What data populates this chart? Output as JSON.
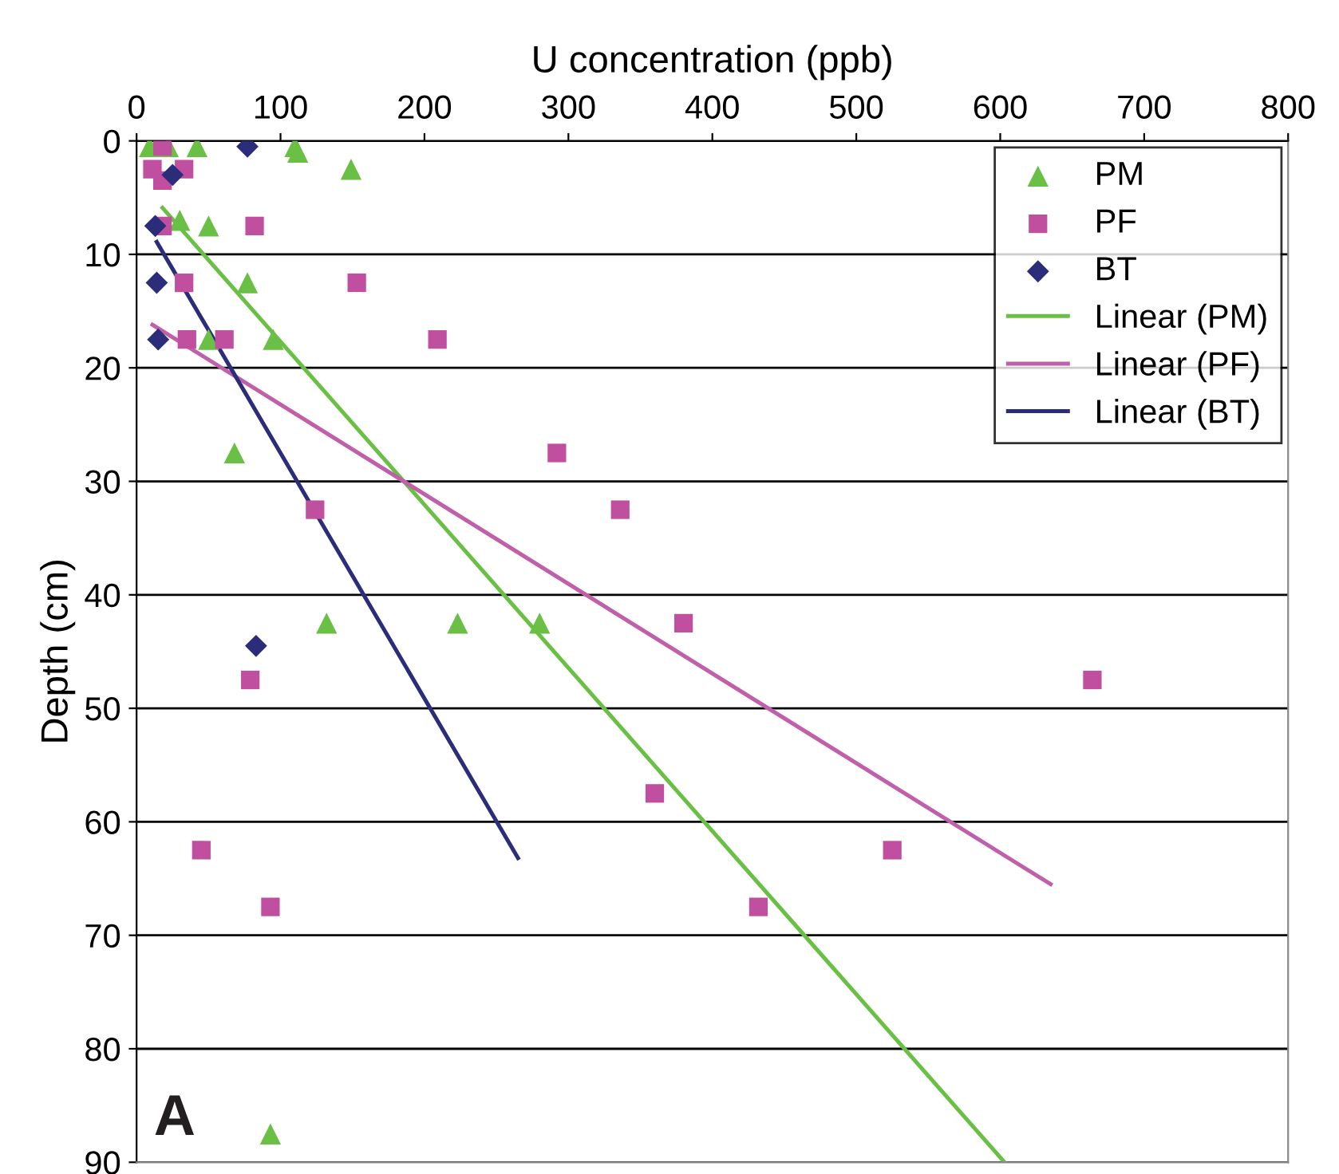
{
  "chart_data": {
    "type": "scatter",
    "xlabel": "U concentration (ppb)",
    "ylabel": "Depth (cm)",
    "xlim": [
      0,
      800
    ],
    "xticks": [
      0,
      100,
      200,
      300,
      400,
      500,
      600,
      700,
      800
    ],
    "ylim": [
      90,
      0
    ],
    "yticks": [
      0,
      10,
      20,
      30,
      40,
      50,
      60,
      70,
      80,
      90
    ],
    "grid": "y",
    "legend": "top right",
    "annotations": [
      "A"
    ],
    "series": [
      {
        "name": "PM",
        "marker": "triangle",
        "color": "#6abf45",
        "x": [
          9,
          22,
          42,
          110,
          112,
          149,
          null,
          30,
          50,
          null,
          77,
          null,
          50,
          95,
          68,
          132,
          223,
          280,
          93
        ],
        "values": [
          0.5,
          0.5,
          0.5,
          0.5,
          1,
          2.5,
          null,
          7,
          7.5,
          null,
          12.5,
          null,
          17.5,
          17.5,
          27.5,
          42.5,
          42.5,
          42.5,
          87.5
        ]
      },
      {
        "name": "PF",
        "marker": "square",
        "color": "#c0509f",
        "x": [
          18,
          11,
          33,
          18,
          18,
          82,
          33,
          153,
          35,
          61,
          209,
          292,
          124,
          336,
          380,
          79,
          664,
          360,
          45,
          525,
          93,
          432
        ],
        "values": [
          0.5,
          2.5,
          2.5,
          3.5,
          7.5,
          7.5,
          12.5,
          12.5,
          17.5,
          17.5,
          17.5,
          27.5,
          32.5,
          32.5,
          42.5,
          47.5,
          47.5,
          57.5,
          62.5,
          62.5,
          67.5,
          67.5
        ]
      },
      {
        "name": "BT",
        "marker": "diamond",
        "color": "#2b2d7a",
        "x": [
          77,
          25,
          13,
          14,
          15,
          83
        ],
        "values": [
          0.5,
          3,
          7.5,
          12.5,
          17.5,
          44.5
        ]
      },
      {
        "name": "Linear (PM)",
        "type": "line",
        "color": "#6abf45",
        "x": [
          18,
          603
        ],
        "values": [
          5.9,
          90
        ]
      },
      {
        "name": "Linear (PF)",
        "type": "line",
        "color": "#c060a8",
        "x": [
          11,
          635
        ],
        "values": [
          16.2,
          65.5
        ]
      },
      {
        "name": "Linear (BT)",
        "type": "line",
        "color": "#2b2d7a",
        "x": [
          14,
          265
        ],
        "values": [
          8.9,
          63.2
        ]
      }
    ]
  }
}
